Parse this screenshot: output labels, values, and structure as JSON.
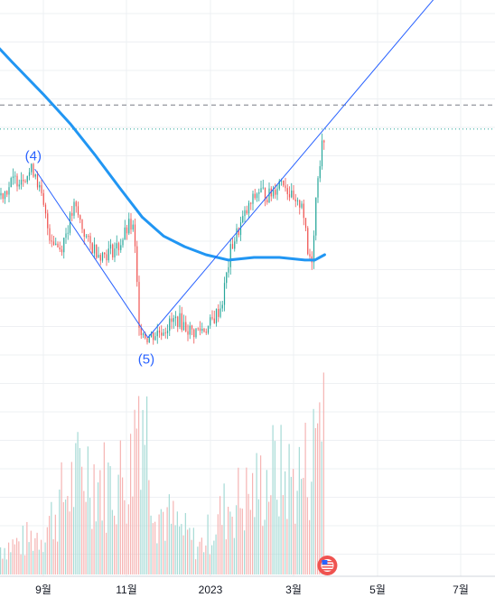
{
  "chart_data": {
    "type": "candlestick",
    "x_ticks": [
      "9월",
      "11월",
      "2023",
      "3월",
      "5월",
      "7월"
    ],
    "annotations": [
      {
        "text": "(4)",
        "x": "2022-08-26",
        "y": 1.62
      },
      {
        "text": "(5)",
        "x": "2022-11-14",
        "y": 0.86
      }
    ],
    "price_series": [
      {
        "date": "2022-08-01",
        "value": 1.47
      },
      {
        "date": "2022-08-12",
        "value": 1.53
      },
      {
        "date": "2022-08-26",
        "value": 1.57
      },
      {
        "date": "2022-09-05",
        "value": 1.33
      },
      {
        "date": "2022-09-13",
        "value": 1.27
      },
      {
        "date": "2022-09-23",
        "value": 1.43
      },
      {
        "date": "2022-10-03",
        "value": 1.29
      },
      {
        "date": "2022-10-13",
        "value": 1.25
      },
      {
        "date": "2022-10-24",
        "value": 1.28
      },
      {
        "date": "2022-11-01",
        "value": 1.36
      },
      {
        "date": "2022-11-04",
        "value": 1.34
      },
      {
        "date": "2022-11-08",
        "value": 0.98
      },
      {
        "date": "2022-11-14",
        "value": 0.94
      },
      {
        "date": "2022-11-24",
        "value": 0.97
      },
      {
        "date": "2022-12-05",
        "value": 1.01
      },
      {
        "date": "2022-12-15",
        "value": 0.96
      },
      {
        "date": "2022-12-27",
        "value": 0.98
      },
      {
        "date": "2023-01-05",
        "value": 1.06
      },
      {
        "date": "2023-01-12",
        "value": 1.28
      },
      {
        "date": "2023-01-20",
        "value": 1.38
      },
      {
        "date": "2023-01-31",
        "value": 1.49
      },
      {
        "date": "2023-02-08",
        "value": 1.47
      },
      {
        "date": "2023-02-17",
        "value": 1.54
      },
      {
        "date": "2023-02-27",
        "value": 1.42
      },
      {
        "date": "2023-03-03",
        "value": 1.46
      },
      {
        "date": "2023-03-07",
        "value": 1.25
      },
      {
        "date": "2023-03-10",
        "value": 1.24
      },
      {
        "date": "2023-03-14",
        "value": 1.55
      },
      {
        "date": "2023-03-19",
        "value": 1.71
      }
    ],
    "moving_average": [
      {
        "date": "2022-07-25",
        "value": 2.06
      },
      {
        "date": "2022-08-10",
        "value": 1.97
      },
      {
        "date": "2022-09-01",
        "value": 1.85
      },
      {
        "date": "2022-09-20",
        "value": 1.74
      },
      {
        "date": "2022-10-08",
        "value": 1.62
      },
      {
        "date": "2022-10-25",
        "value": 1.5
      },
      {
        "date": "2022-11-10",
        "value": 1.39
      },
      {
        "date": "2022-11-25",
        "value": 1.32
      },
      {
        "date": "2022-12-10",
        "value": 1.28
      },
      {
        "date": "2022-12-25",
        "value": 1.25
      },
      {
        "date": "2023-01-10",
        "value": 1.23
      },
      {
        "date": "2023-01-28",
        "value": 1.24
      },
      {
        "date": "2023-02-15",
        "value": 1.24
      },
      {
        "date": "2023-03-05",
        "value": 1.23
      },
      {
        "date": "2023-03-12",
        "value": 1.23
      },
      {
        "date": "2023-03-19",
        "value": 1.25
      }
    ],
    "trendlines": [
      {
        "from": {
          "date": "2022-08-26",
          "y": 1.57
        },
        "to": {
          "date": "2022-11-14",
          "y": 0.94
        }
      },
      {
        "from": {
          "date": "2022-11-14",
          "y": 0.94
        },
        "to": {
          "date": "2023-07-10",
          "y": 2.43
        }
      }
    ],
    "horizontal_levels": [
      {
        "y": 1.81,
        "style": "dashed"
      },
      {
        "y": 1.72,
        "style": "dotted"
      }
    ],
    "volume": [
      {
        "date": "2022-08-01",
        "value": 14
      },
      {
        "date": "2022-08-15",
        "value": 16
      },
      {
        "date": "2022-09-01",
        "value": 22
      },
      {
        "date": "2022-09-15",
        "value": 40
      },
      {
        "date": "2022-10-01",
        "value": 55
      },
      {
        "date": "2022-10-15",
        "value": 46
      },
      {
        "date": "2022-11-01",
        "value": 52
      },
      {
        "date": "2022-11-08",
        "value": 100
      },
      {
        "date": "2022-11-20",
        "value": 34
      },
      {
        "date": "2022-12-05",
        "value": 24
      },
      {
        "date": "2022-12-20",
        "value": 14
      },
      {
        "date": "2023-01-10",
        "value": 36
      },
      {
        "date": "2023-01-25",
        "value": 40
      },
      {
        "date": "2023-02-10",
        "value": 52
      },
      {
        "date": "2023-02-25",
        "value": 48
      },
      {
        "date": "2023-03-10",
        "value": 58
      },
      {
        "date": "2023-03-16",
        "value": 96
      }
    ],
    "colors": {
      "up": "#26a69a",
      "down": "#ef5350",
      "volume_up": "#a5dad5",
      "volume_down": "#f6b4b3",
      "moving_average": "#2196f3",
      "trendline": "#2962ff",
      "level_dashed": "#787b86",
      "level_dotted": "#26a69a",
      "grid": "#eef0f3",
      "flag": "#ef5350"
    },
    "grid": true,
    "flag_icon": "us-flag-icon"
  }
}
